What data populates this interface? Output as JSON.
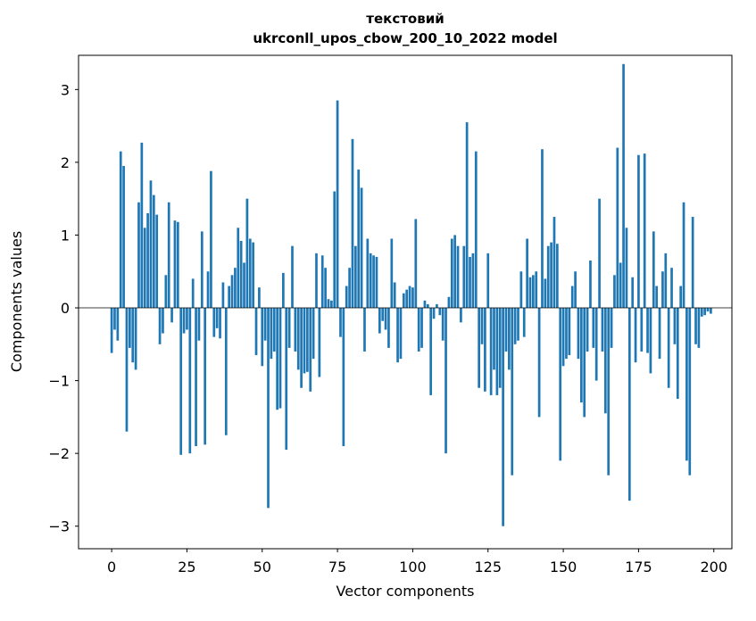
{
  "figure": {
    "title_line1": "текстовий",
    "title_line2": "ukrconll_upos_cbow_200_10_2022 model",
    "xlabel": "Vector components",
    "ylabel": "Components values"
  },
  "chart_data": {
    "type": "bar",
    "title": "текстовий\nukrconll_upos_cbow_200_10_2022 model",
    "xlabel": "Vector components",
    "ylabel": "Components values",
    "bar_color": "#1f77b4",
    "grid": false,
    "legend": null,
    "zero_line": true,
    "x_start": 0,
    "xticks": [
      0,
      25,
      50,
      75,
      100,
      125,
      150,
      175,
      200
    ],
    "yticks": [
      -3,
      -2,
      -1,
      0,
      1,
      2,
      3
    ],
    "xlim": [
      -11,
      206
    ],
    "ylim": [
      -3.31,
      3.47
    ],
    "values": [
      -0.62,
      -0.3,
      -0.45,
      2.15,
      1.95,
      -1.7,
      -0.55,
      -0.75,
      -0.85,
      1.45,
      2.27,
      1.1,
      1.3,
      1.75,
      1.55,
      1.28,
      -0.5,
      -0.35,
      0.45,
      1.45,
      -0.2,
      1.2,
      1.18,
      -2.02,
      -0.35,
      -0.3,
      -2.0,
      0.4,
      -1.9,
      -0.45,
      1.05,
      -1.88,
      0.5,
      1.88,
      -0.4,
      -0.28,
      -0.42,
      0.35,
      -1.75,
      0.3,
      0.45,
      0.55,
      1.1,
      0.92,
      0.62,
      1.5,
      0.95,
      0.9,
      -0.65,
      0.28,
      -0.8,
      -0.45,
      -2.75,
      -0.7,
      -0.6,
      -1.4,
      -1.38,
      0.48,
      -1.95,
      -0.55,
      0.85,
      -0.6,
      -0.85,
      -1.1,
      -0.9,
      -0.88,
      -1.15,
      -0.7,
      0.75,
      -0.95,
      0.72,
      0.55,
      0.12,
      0.1,
      1.6,
      2.85,
      -0.4,
      -1.9,
      0.3,
      0.55,
      2.32,
      0.85,
      1.9,
      1.65,
      -0.6,
      0.95,
      0.75,
      0.72,
      0.7,
      -0.35,
      -0.18,
      -0.3,
      -0.55,
      0.95,
      0.35,
      -0.75,
      -0.7,
      0.2,
      0.25,
      0.3,
      0.28,
      1.22,
      -0.6,
      -0.55,
      0.1,
      0.05,
      -1.2,
      -0.15,
      0.05,
      -0.1,
      -0.45,
      -2.0,
      0.15,
      0.95,
      1.0,
      0.85,
      -0.2,
      0.85,
      2.55,
      0.7,
      0.75,
      2.15,
      -1.1,
      -0.5,
      -1.15,
      0.75,
      -1.2,
      -0.85,
      -1.2,
      -1.1,
      -3.0,
      -0.6,
      -0.85,
      -2.3,
      -0.5,
      -0.45,
      0.5,
      -0.4,
      0.95,
      0.42,
      0.45,
      0.5,
      -1.5,
      2.18,
      0.4,
      0.85,
      0.9,
      1.25,
      0.88,
      -2.1,
      -0.8,
      -0.7,
      -0.65,
      0.3,
      0.5,
      -0.7,
      -1.3,
      -1.5,
      -0.6,
      0.65,
      -0.55,
      -1.0,
      1.5,
      -0.6,
      -1.45,
      -2.3,
      -0.55,
      0.45,
      2.2,
      0.62,
      3.35,
      1.1,
      -2.65,
      0.42,
      -0.75,
      2.1,
      -0.6,
      2.12,
      -0.62,
      -0.9,
      1.05,
      0.3,
      -0.7,
      0.5,
      0.75,
      -1.1,
      0.55,
      -0.5,
      -1.25,
      0.3,
      1.45,
      -2.1,
      -2.3,
      1.25,
      -0.5,
      -0.55,
      -0.12,
      -0.1,
      -0.05,
      -0.08
    ]
  }
}
